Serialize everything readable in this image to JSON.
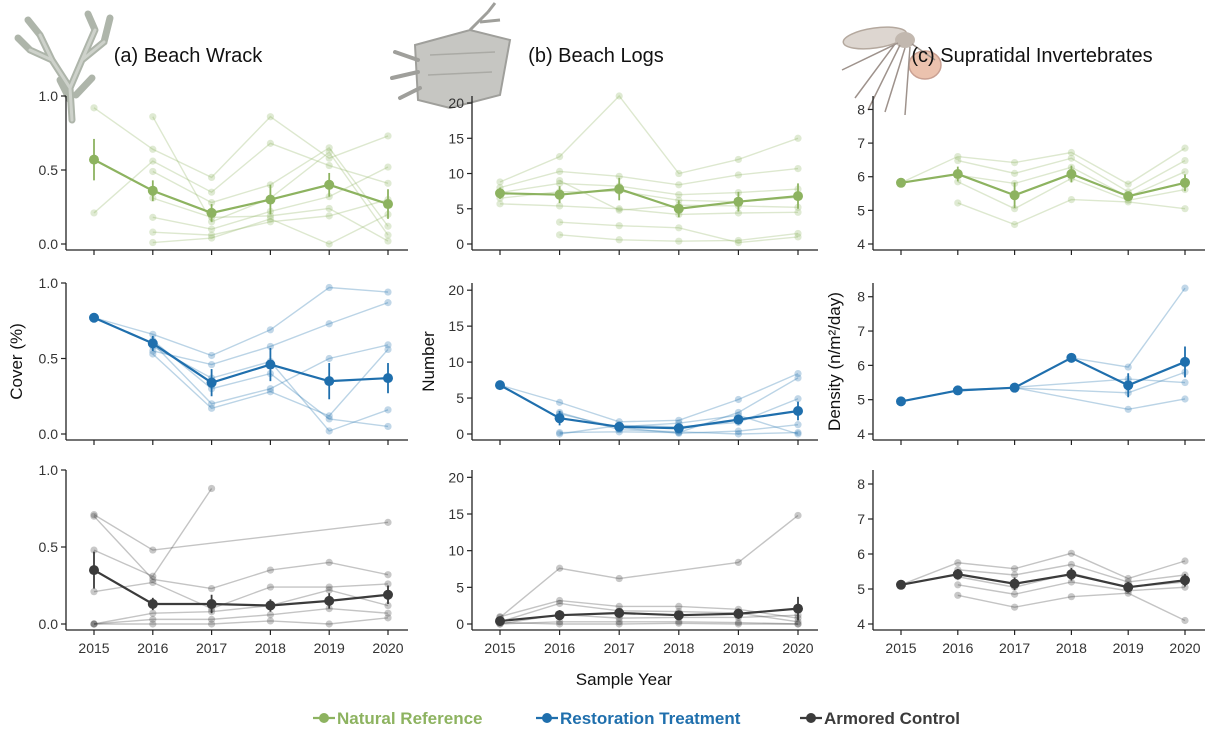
{
  "chart_data": {
    "type": "line",
    "x": [
      2015,
      2016,
      2017,
      2018,
      2019,
      2020
    ],
    "xlabel": "Sample Year",
    "x_tick_labels": [
      "2015",
      "2016",
      "2017",
      "2018",
      "2019",
      "2020"
    ],
    "grid": false,
    "legend_position": "bottom",
    "legend": [
      {
        "name": "Natural Reference",
        "color": "#8db360"
      },
      {
        "name": "Restoration Treatment",
        "color": "#1f6fad"
      },
      {
        "name": "Armored Control",
        "color": "#3b3b3b"
      }
    ],
    "panels": [
      {
        "title": "(a) Beach Wrack",
        "icon": "seaweed-icon",
        "ylabel": "Cover (%)",
        "ylim": [
          0,
          1
        ],
        "yticks": [
          0,
          0.5,
          1
        ],
        "y_tick_labels": [
          "0.0",
          "0.5",
          "1.0"
        ],
        "groups": [
          {
            "name": "Natural Reference",
            "mean": [
              0.57,
              0.36,
              0.21,
              0.3,
              0.4,
              0.27
            ],
            "err": [
              0.14,
              0.07,
              0.06,
              0.1,
              0.08,
              0.1
            ],
            "sites": [
              [
                0.92,
                0.64,
                0.45,
                0.86,
                0.58,
                0.73
              ],
              [
                0.21,
                0.56,
                0.35,
                0.68,
                0.53,
                0.41
              ],
              [
                null,
                0.49,
                0.28,
                0.4,
                0.65,
                0.12
              ],
              [
                null,
                0.18,
                0.1,
                0.22,
                0.32,
                0.52
              ],
              [
                null,
                0.08,
                0.06,
                0.15,
                0.19,
                0.3
              ],
              [
                null,
                0.01,
                0.04,
                0.17,
                0.0,
                0.2
              ],
              [
                null,
                0.86,
                0.15,
                0.31,
                0.62,
                0.06
              ],
              [
                null,
                0.31,
                0.18,
                0.19,
                0.24,
                0.02
              ]
            ]
          },
          {
            "name": "Restoration Treatment",
            "mean": [
              0.77,
              0.6,
              0.34,
              0.46,
              0.35,
              0.37
            ],
            "err": [
              0.0,
              0.05,
              0.09,
              0.11,
              0.12,
              0.1
            ],
            "sites": [
              [
                0.77,
                0.66,
                0.52,
                0.69,
                0.97,
                0.94
              ],
              [
                null,
                0.55,
                0.46,
                0.58,
                0.73,
                0.87
              ],
              [
                null,
                0.6,
                0.2,
                0.3,
                0.5,
                0.59
              ],
              [
                null,
                0.53,
                0.17,
                0.28,
                0.12,
                0.56
              ],
              [
                null,
                0.58,
                0.37,
                0.48,
                0.02,
                0.16
              ],
              [
                null,
                0.62,
                0.3,
                0.4,
                0.1,
                0.05
              ]
            ]
          },
          {
            "name": "Armored Control",
            "mean": [
              0.35,
              0.13,
              0.13,
              0.12,
              0.15,
              0.19
            ],
            "err": [
              0.12,
              0.04,
              0.06,
              0.04,
              0.05,
              0.06
            ],
            "sites": [
              [
                0.71,
                0.48,
                null,
                null,
                null,
                0.66
              ],
              [
                0.7,
                0.29,
                0.23,
                0.35,
                0.4,
                0.32
              ],
              [
                0.48,
                0.31,
                0.88,
                null,
                null,
                null
              ],
              [
                0.21,
                0.27,
                0.1,
                0.24,
                0.24,
                0.26
              ],
              [
                0.0,
                0.07,
                0.08,
                0.12,
                0.22,
                0.12
              ],
              [
                0.0,
                0.03,
                0.03,
                0.06,
                0.1,
                0.07
              ],
              [
                0.0,
                0.0,
                0.0,
                0.02,
                0.0,
                0.04
              ]
            ]
          }
        ]
      },
      {
        "title": "(b) Beach Logs",
        "icon": "driftwood-log-icon",
        "ylabel": "Number",
        "ylim": [
          0,
          21
        ],
        "yticks": [
          0,
          5,
          10,
          15,
          20
        ],
        "y_tick_labels": [
          "0",
          "5",
          "10",
          "15",
          "20"
        ],
        "groups": [
          {
            "name": "Natural Reference",
            "mean": [
              7.2,
              7.0,
              7.8,
              5.0,
              6.0,
              6.8
            ],
            "err": [
              0.8,
              1.2,
              1.6,
              1.2,
              1.4,
              1.8
            ],
            "sites": [
              [
                8.8,
                12.4,
                21.0,
                10.0,
                12.0,
                15.0
              ],
              [
                8.0,
                10.3,
                9.6,
                8.4,
                9.8,
                10.7
              ],
              [
                7.3,
                8.6,
                8.2,
                7.0,
                7.3,
                7.8
              ],
              [
                6.5,
                7.4,
                7.5,
                6.2,
                6.0,
                6.6
              ],
              [
                5.7,
                5.4,
                5.0,
                4.2,
                4.4,
                4.5
              ],
              [
                null,
                1.3,
                0.6,
                0.4,
                0.5,
                1.5
              ],
              [
                null,
                3.1,
                2.6,
                2.3,
                0.2,
                1.0
              ],
              [
                null,
                9.0,
                4.8,
                5.5,
                5.4,
                5.2
              ]
            ]
          },
          {
            "name": "Restoration Treatment",
            "mean": [
              6.8,
              2.2,
              1.0,
              0.8,
              2.0,
              3.2
            ],
            "err": [
              0.0,
              1.0,
              0.4,
              0.5,
              0.7,
              1.3
            ],
            "sites": [
              [
                6.8,
                4.4,
                1.7,
                1.9,
                4.8,
                8.4
              ],
              [
                null,
                0.2,
                0.3,
                0.2,
                3.0,
                7.8
              ],
              [
                null,
                0.0,
                1.2,
                1.0,
                1.6,
                4.9
              ],
              [
                null,
                2.8,
                0.9,
                0.1,
                0.4,
                1.3
              ],
              [
                null,
                3.0,
                0.6,
                0.3,
                0.0,
                0.2
              ],
              [
                null,
                null,
                1.0,
                1.5,
                2.6,
                0.0
              ]
            ]
          },
          {
            "name": "Armored Control",
            "mean": [
              0.4,
              1.2,
              1.5,
              1.2,
              1.4,
              2.1
            ],
            "err": [
              0.3,
              0.7,
              0.6,
              0.5,
              0.7,
              1.6
            ],
            "sites": [
              [
                0.9,
                7.6,
                6.2,
                null,
                8.4,
                14.8
              ],
              [
                1.0,
                3.2,
                2.4,
                2.4,
                2.0,
                0.8
              ],
              [
                0.3,
                2.8,
                1.8,
                1.7,
                1.5,
                0.3
              ],
              [
                0.0,
                1.3,
                0.8,
                0.9,
                0.9,
                1.2
              ],
              [
                0.0,
                0.3,
                0.3,
                0.3,
                0.2,
                0.0
              ],
              [
                0.2,
                0.0,
                0.0,
                0.1,
                0.0,
                0.0
              ]
            ]
          }
        ]
      },
      {
        "title": "(c) Supratidal Invertebrates",
        "icon": "crane-fly-icon",
        "ylabel": "Density (n/m²/day)",
        "ylim": [
          4,
          8.4
        ],
        "yticks": [
          4,
          5,
          6,
          7,
          8
        ],
        "y_tick_labels": [
          "4",
          "5",
          "6",
          "7",
          "8"
        ],
        "groups": [
          {
            "name": "Natural Reference",
            "mean": [
              5.82,
              6.08,
              5.45,
              6.08,
              5.42,
              5.82
            ],
            "err": [
              0.0,
              0.22,
              0.38,
              0.25,
              0.12,
              0.25
            ],
            "sites": [
              [
                5.82,
                6.6,
                6.42,
                6.72,
                5.78,
                6.85
              ],
              [
                null,
                6.48,
                6.1,
                6.55,
                5.55,
                6.48
              ],
              [
                null,
                6.05,
                5.8,
                6.28,
                5.4,
                6.15
              ],
              [
                null,
                5.85,
                5.05,
                5.95,
                5.3,
                5.62
              ],
              [
                null,
                5.22,
                4.58,
                5.32,
                5.25,
                5.05
              ]
            ]
          },
          {
            "name": "Restoration Treatment",
            "mean": [
              4.95,
              5.27,
              5.35,
              6.22,
              5.42,
              6.1
            ],
            "err": [
              0.0,
              0.05,
              0.06,
              0.05,
              0.35,
              0.45
            ],
            "sites": [
              [
                4.95,
                5.28,
                5.35,
                6.22,
                5.95,
                8.25
              ],
              [
                null,
                5.25,
                5.35,
                null,
                4.72,
                5.02
              ],
              [
                null,
                5.3,
                5.34,
                null,
                5.2,
                5.8
              ],
              [
                null,
                5.26,
                5.36,
                null,
                5.6,
                5.5
              ]
            ]
          },
          {
            "name": "Armored Control",
            "mean": [
              5.12,
              5.42,
              5.15,
              5.42,
              5.05,
              5.25
            ],
            "err": [
              0.0,
              0.15,
              0.18,
              0.18,
              0.15,
              0.18
            ],
            "sites": [
              [
                5.12,
                5.75,
                5.58,
                6.02,
                5.3,
                5.8
              ],
              [
                null,
                5.55,
                5.4,
                5.7,
                5.2,
                5.4
              ],
              [
                null,
                5.35,
                5.05,
                5.45,
                5.05,
                5.2
              ],
              [
                null,
                5.12,
                4.85,
                5.2,
                4.95,
                5.05
              ],
              [
                null,
                4.82,
                4.48,
                4.78,
                4.88,
                4.1
              ]
            ]
          }
        ]
      }
    ]
  }
}
